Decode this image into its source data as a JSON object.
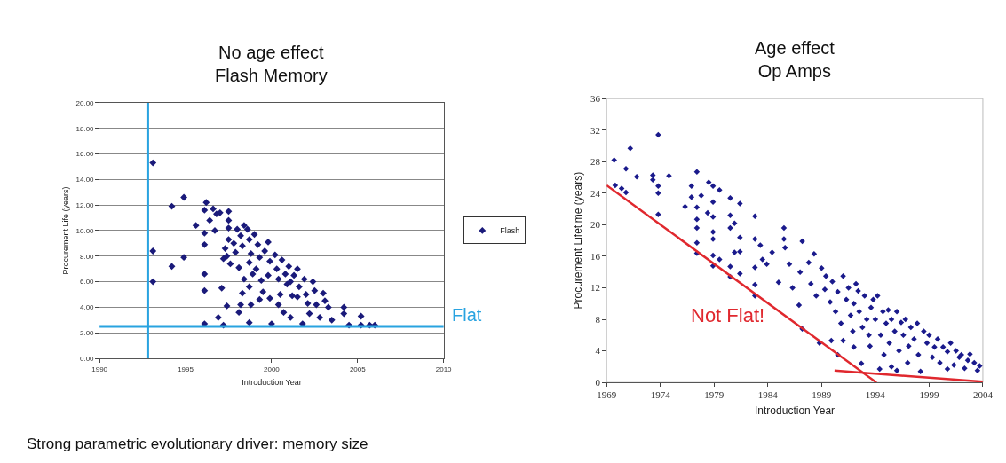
{
  "chart_data": [
    {
      "type": "scatter",
      "title": "No age effect",
      "subtitle": "Flash Memory",
      "xlabel": "Introduction Year",
      "ylabel": "Procurement Life (years)",
      "xlim": [
        1990,
        2010
      ],
      "ylim": [
        0,
        20
      ],
      "xticks": [
        1990,
        1995,
        2000,
        2005,
        2010
      ],
      "yticks": [
        {
          "value": 0,
          "label": "0.00"
        },
        {
          "value": 2,
          "label": "2.00"
        },
        {
          "value": 4,
          "label": "4.00"
        },
        {
          "value": 6,
          "label": "6.00"
        },
        {
          "value": 8,
          "label": "8.00"
        },
        {
          "value": 10,
          "label": "10.00"
        },
        {
          "value": 12,
          "label": "12.00"
        },
        {
          "value": 14,
          "label": "14.00"
        },
        {
          "value": 16,
          "label": "16.00"
        },
        {
          "value": 18,
          "label": "18.00"
        },
        {
          "value": 20,
          "label": "20.00"
        }
      ],
      "grid": "y",
      "legend": "right",
      "marker": "diamond",
      "series": [
        {
          "name": "Flash",
          "color": "#1a1a7a",
          "x": [
            1993.1,
            1993.1,
            1993.1,
            1994.2,
            1994.9,
            1994.2,
            1994.9,
            1995.6,
            1996.1,
            1996.1,
            1996.1,
            1996.1,
            1996.1,
            1996.1,
            1996.2,
            1996.6,
            1996.4,
            1996.8,
            1996.7,
            1997.0,
            1997.1,
            1997.4,
            1996.9,
            1997.2,
            1997.5,
            1997.5,
            1997.5,
            1997.5,
            1997.3,
            1997.4,
            1997.6,
            1997.2,
            1997.8,
            1997.9,
            1998.0,
            1998.2,
            1998.4,
            1998.3,
            1998.1,
            1998.4,
            1998.3,
            1998.2,
            1998.1,
            1998.6,
            1998.7,
            1998.8,
            1998.7,
            1998.9,
            1998.7,
            1998.8,
            1998.7,
            1999.0,
            1999.2,
            1999.3,
            1999.1,
            1999.4,
            1999.5,
            1999.3,
            1999.6,
            1999.8,
            1999.9,
            1999.8,
            1999.9,
            2000.0,
            2000.2,
            2000.3,
            2000.4,
            2000.5,
            2000.4,
            2000.6,
            2000.8,
            2000.9,
            2000.7,
            2001.0,
            2001.1,
            2001.2,
            2001.1,
            2001.3,
            2001.5,
            2001.5,
            2001.6,
            2001.8,
            2001.9,
            2002.0,
            2002.1,
            2002.2,
            2002.4,
            2002.5,
            2002.6,
            2002.8,
            2003.0,
            2003.1,
            2003.3,
            2003.5,
            2004.2,
            2004.2,
            2004.5,
            2005.2,
            2005.2,
            2006.0,
            2005.7
          ],
          "values": [
            15.3,
            8.4,
            6.0,
            11.9,
            12.6,
            7.2,
            7.9,
            10.4,
            11.6,
            9.8,
            8.9,
            6.6,
            5.3,
            2.7,
            12.2,
            11.7,
            10.8,
            11.3,
            10.0,
            11.4,
            5.5,
            4.1,
            3.2,
            2.6,
            11.5,
            10.8,
            10.2,
            9.3,
            8.6,
            8.0,
            7.4,
            7.8,
            9.0,
            8.3,
            10.1,
            9.6,
            10.4,
            8.8,
            7.1,
            6.2,
            5.1,
            4.2,
            3.6,
            10.1,
            9.3,
            8.2,
            7.5,
            6.6,
            5.6,
            4.2,
            2.8,
            9.7,
            8.9,
            7.9,
            7.0,
            6.1,
            5.2,
            4.6,
            8.4,
            9.1,
            7.6,
            6.5,
            4.7,
            2.7,
            8.1,
            7.0,
            6.2,
            5.0,
            4.2,
            7.7,
            6.6,
            5.8,
            3.6,
            7.2,
            6.0,
            4.9,
            3.2,
            6.5,
            7.0,
            4.8,
            5.6,
            2.7,
            6.2,
            5.0,
            4.3,
            3.5,
            6.0,
            5.3,
            4.2,
            3.2,
            5.1,
            4.5,
            4.0,
            3.0,
            4.0,
            3.5,
            2.6,
            3.3,
            2.6,
            2.6,
            2.6
          ]
        }
      ],
      "ref_lines": [
        {
          "axis": "x",
          "value": 1992.8,
          "color": "#29a3e0"
        },
        {
          "axis": "y",
          "value": 2.5,
          "label": "Flat",
          "color": "#29a3e0"
        }
      ],
      "annotations": [
        "Strong parametric evolutionary driver: memory size"
      ]
    },
    {
      "type": "scatter",
      "title": "Age effect",
      "subtitle": "Op Amps",
      "xlabel": "Introduction Year",
      "ylabel": "Procurement Lifetime (years)",
      "xlim": [
        1969,
        2004
      ],
      "ylim": [
        0,
        36
      ],
      "xticks": [
        1969,
        1974,
        1979,
        1984,
        1989,
        1994,
        1999,
        2004
      ],
      "yticks": [
        0,
        4,
        8,
        12,
        16,
        20,
        24,
        28,
        32,
        36
      ],
      "grid": false,
      "legend": false,
      "series": [
        {
          "color": "#1a1a8c",
          "marker": "diamond",
          "x": [
            1969.7,
            1969.8,
            1970.4,
            1970.8,
            1970.8,
            1971.2,
            1971.8,
            1973.3,
            1973.3,
            1973.8,
            1973.8,
            1973.8,
            1973.8,
            1974.8,
            1976.3,
            1976.9,
            1976.9,
            1977.4,
            1977.4,
            1977.4,
            1977.4,
            1977.4,
            1977.4,
            1977.8,
            1978.4,
            1978.5,
            1978.9,
            1978.9,
            1978.9,
            1978.9,
            1978.9,
            1978.9,
            1978.9,
            1979.5,
            1979.5,
            1980.5,
            1980.5,
            1980.5,
            1980.5,
            1980.5,
            1980.9,
            1980.9,
            1981.4,
            1981.4,
            1981.4,
            1981.4,
            1982.8,
            1982.8,
            1982.8,
            1982.8,
            1982.8,
            1983.3,
            1983.5,
            1983.9,
            1984.4,
            1985.5,
            1985.5,
            1985.6,
            1987.2,
            1985.0,
            1986.3,
            1986.9,
            1987.2,
            1988.3,
            1988.8,
            1989.4,
            1989.9,
            1991.0,
            1991.0,
            1992.4,
            1993.5,
            1992.7,
            1993.8,
            1994.4,
            1995.2,
            1996.4,
            1997.1,
            1998.5,
            1999.3,
            2000.7,
            2001.8,
            2002.6,
            2003.7,
            2000.7,
            1998.2,
            1996.0,
            1986.0,
            1987.0,
            1987.8,
            1988.0,
            1988.5,
            1989.0,
            1989.3,
            1989.8,
            1990.0,
            1990.3,
            1990.5,
            1990.8,
            1991.3,
            1991.5,
            1991.7,
            1991.9,
            1992.0,
            1992.2,
            1992.5,
            1992.8,
            1993.0,
            1993.2,
            1993.4,
            1993.6,
            1994.0,
            1994.2,
            1994.5,
            1994.7,
            1994.8,
            1995.0,
            1995.3,
            1995.5,
            1995.8,
            1996.0,
            1996.2,
            1996.6,
            1996.8,
            1997.0,
            1997.3,
            1997.6,
            1997.9,
            1998.0,
            1998.8,
            1999.0,
            1999.5,
            1999.8,
            2000.0,
            2000.3,
            2001.0,
            2001.3,
            2001.5,
            2002.0,
            2002.3,
            2002.8,
            2003.2,
            2003.5,
            1990.5,
            1992.0,
            1995.5
          ],
          "values": [
            28.2,
            25.0,
            24.6,
            24.1,
            27.1,
            29.7,
            26.1,
            26.3,
            25.7,
            31.4,
            24.9,
            24.0,
            21.3,
            26.2,
            22.3,
            24.9,
            23.5,
            26.7,
            22.2,
            20.7,
            19.6,
            17.7,
            16.4,
            23.7,
            21.5,
            25.4,
            24.9,
            22.9,
            21.0,
            19.1,
            18.2,
            16.1,
            14.8,
            15.6,
            24.4,
            23.4,
            21.2,
            19.6,
            14.7,
            13.4,
            20.2,
            16.5,
            22.7,
            18.4,
            16.6,
            13.8,
            21.1,
            18.2,
            14.6,
            12.4,
            11.0,
            17.4,
            15.6,
            15.0,
            16.5,
            19.6,
            18.2,
            17.1,
            17.9,
            12.7,
            12.0,
            9.8,
            6.8,
            16.3,
            5.0,
            13.5,
            5.3,
            13.5,
            5.3,
            11.6,
            4.6,
            2.4,
            10.5,
            1.7,
            9.2,
            7.6,
            4.6,
            6.5,
            3.2,
            3.9,
            3.2,
            2.8,
            2.1,
            1.7,
            1.4,
            1.5,
            15.0,
            14.0,
            15.2,
            12.5,
            11.0,
            14.5,
            11.8,
            10.2,
            12.8,
            9.0,
            11.5,
            7.5,
            10.5,
            12.0,
            8.5,
            6.5,
            10.0,
            12.5,
            9.0,
            7.0,
            11.0,
            8.0,
            6.0,
            9.5,
            8.0,
            11.0,
            6.0,
            9.0,
            3.5,
            7.5,
            5.0,
            8.0,
            6.5,
            9.0,
            4.0,
            6.0,
            8.0,
            2.5,
            7.0,
            5.5,
            7.5,
            3.5,
            5.0,
            6.0,
            4.5,
            5.5,
            2.5,
            4.5,
            5.0,
            2.2,
            4.0,
            3.5,
            1.8,
            3.6,
            2.5,
            1.5,
            3.5,
            4.5,
            2.0
          ]
        },
        {
          "type": "line",
          "marker": "none",
          "color": "#e0282e",
          "x": [
            1969,
            1994.1
          ],
          "values": [
            25,
            0
          ]
        },
        {
          "type": "line",
          "marker": "none",
          "color": "#e0282e",
          "x": [
            1990.2,
            2004
          ],
          "values": [
            1.5,
            0.1
          ]
        }
      ],
      "annotations": [
        "Not Flat!"
      ]
    }
  ]
}
